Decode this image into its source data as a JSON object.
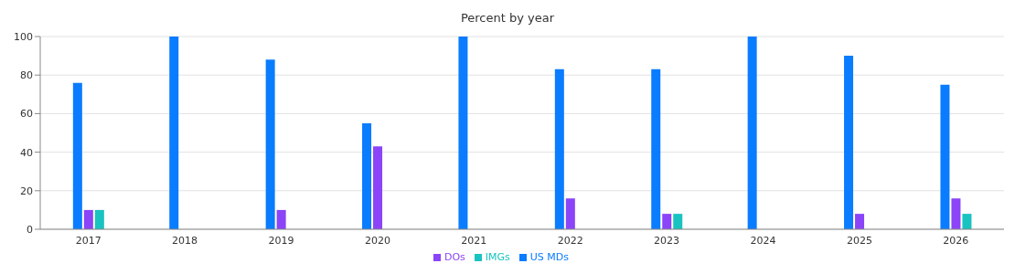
{
  "chart_data": {
    "type": "bar",
    "title": "Percent by year",
    "categories": [
      "2017",
      "2018",
      "2019",
      "2020",
      "2021",
      "2022",
      "2023",
      "2024",
      "2025",
      "2026"
    ],
    "series": [
      {
        "name": "US MDs",
        "color": "#0a7cff",
        "values": [
          76,
          100,
          88,
          55,
          100,
          83,
          83,
          100,
          90,
          75
        ]
      },
      {
        "name": "DOs",
        "color": "#8b44f7",
        "values": [
          10,
          0,
          10,
          43,
          0,
          16,
          8,
          0,
          8,
          16
        ]
      },
      {
        "name": "IMGs",
        "color": "#19c3c0",
        "values": [
          10,
          0,
          0,
          0,
          0,
          0,
          8,
          0,
          0,
          8
        ]
      }
    ],
    "ylim": [
      0,
      100
    ],
    "yticks": [
      0,
      20,
      40,
      60,
      80,
      100
    ],
    "grid": "y",
    "legend": "bottom"
  }
}
